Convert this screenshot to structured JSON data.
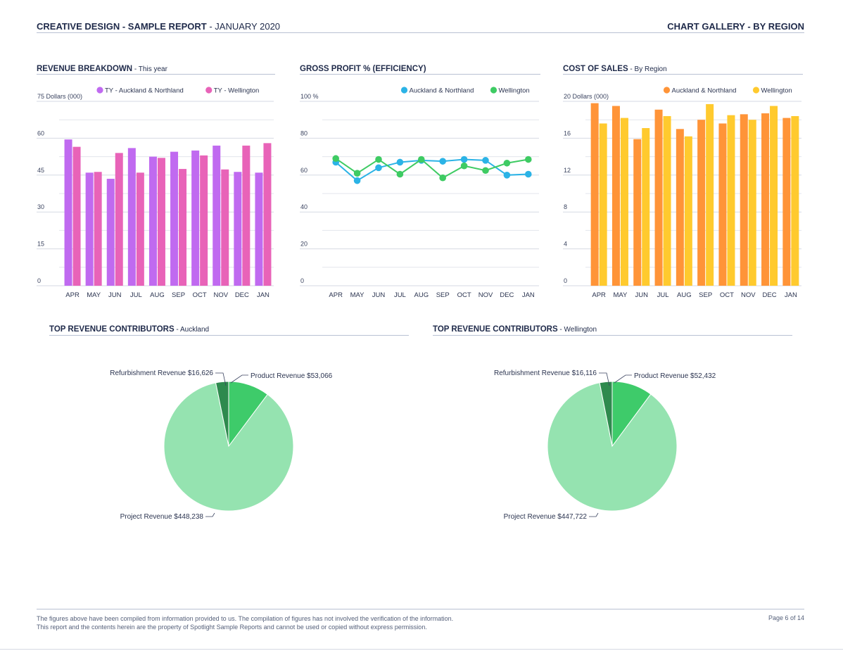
{
  "header": {
    "title_bold": "CREATIVE DESIGN - SAMPLE REPORT",
    "title_rest": " - JANUARY 2020",
    "right": "CHART GALLERY - BY REGION"
  },
  "chart_data": [
    {
      "id": "revenue",
      "type": "bar",
      "title": "REVENUE BREAKDOWN",
      "subtitle": " - This year",
      "ylabel": "Dollars (000)",
      "ylim": [
        0,
        75
      ],
      "yticks": [
        "0",
        "15",
        "30",
        "45",
        "60",
        "75"
      ],
      "categories": [
        "APR",
        "MAY",
        "JUN",
        "JUL",
        "AUG",
        "SEP",
        "OCT",
        "NOV",
        "DEC",
        "JAN"
      ],
      "series": [
        {
          "name": "TY - Auckland & Northland",
          "color": "#c06af0",
          "values": [
            59.5,
            46,
            43.5,
            56,
            52.5,
            54.5,
            55,
            57,
            46.3,
            46
          ]
        },
        {
          "name": "TY - Wellington",
          "color": "#e863b8",
          "values": [
            56.5,
            46.3,
            54,
            46,
            52,
            47.5,
            53,
            47.3,
            57,
            58
          ]
        }
      ]
    },
    {
      "id": "gross",
      "type": "line",
      "title": "GROSS PROFIT % (EFFICIENCY)",
      "subtitle": "",
      "ylabel": "%",
      "ylim": [
        0,
        100
      ],
      "yticks": [
        "0",
        "20",
        "40",
        "60",
        "80",
        "100"
      ],
      "categories": [
        "APR",
        "MAY",
        "JUN",
        "JUL",
        "AUG",
        "SEP",
        "OCT",
        "NOV",
        "DEC",
        "JAN"
      ],
      "series": [
        {
          "name": "Auckland & Northland",
          "color": "#2bb3e6",
          "values": [
            67,
            57,
            64,
            67,
            68,
            67.5,
            68.5,
            68,
            60,
            60.5
          ]
        },
        {
          "name": "Wellington",
          "color": "#3ecb63",
          "values": [
            69,
            61,
            68.5,
            60.5,
            68.5,
            58.5,
            65,
            62.5,
            66.5,
            68.5
          ]
        }
      ]
    },
    {
      "id": "cost",
      "type": "bar",
      "title": "COST OF SALES",
      "subtitle": " - By Region",
      "ylabel": "Dollars (000)",
      "ylim": [
        0,
        20
      ],
      "yticks": [
        "0",
        "4",
        "8",
        "12",
        "16",
        "20"
      ],
      "categories": [
        "APR",
        "MAY",
        "JUN",
        "JUL",
        "AUG",
        "SEP",
        "OCT",
        "NOV",
        "DEC",
        "JAN"
      ],
      "series": [
        {
          "name": "Auckland & Northland",
          "color": "#ff9438",
          "values": [
            19.8,
            19.5,
            15.9,
            19.1,
            17,
            18,
            17.6,
            18.6,
            18.7,
            18.2
          ]
        },
        {
          "name": "Wellington",
          "color": "#ffca2e",
          "values": [
            17.6,
            18.2,
            17.1,
            18.4,
            16.2,
            19.7,
            18.5,
            18,
            19.5,
            18.4
          ]
        }
      ]
    },
    {
      "id": "pie_auckland",
      "type": "pie",
      "title": "TOP REVENUE CONTRIBUTORS",
      "subtitle": " - Auckland",
      "slices": [
        {
          "label": "Product Revenue $53,066",
          "value": 53066,
          "color": "#3ecb6a"
        },
        {
          "label": "Project Revenue $448,238",
          "value": 448238,
          "color": "#95e3b0"
        },
        {
          "label": "Refurbishment Revenue $16,626",
          "value": 16626,
          "color": "#2e8a4e"
        }
      ]
    },
    {
      "id": "pie_wellington",
      "type": "pie",
      "title": "TOP REVENUE CONTRIBUTORS",
      "subtitle": " - Wellington",
      "slices": [
        {
          "label": "Product Revenue $52,432",
          "value": 52432,
          "color": "#3ecb6a"
        },
        {
          "label": "Project Revenue $447,722",
          "value": 447722,
          "color": "#95e3b0"
        },
        {
          "label": "Refurbishment Revenue $16,116",
          "value": 16116,
          "color": "#2e8a4e"
        }
      ]
    }
  ],
  "footer": {
    "line1": "The figures above have been compiled from information provided to us. The compilation of figures has not involved the verification of the information.",
    "line2": "This report and the contents herein are the property of Spotlight Sample Reports and cannot be used or copied without express permission.",
    "page": "Page 6 of 14"
  }
}
